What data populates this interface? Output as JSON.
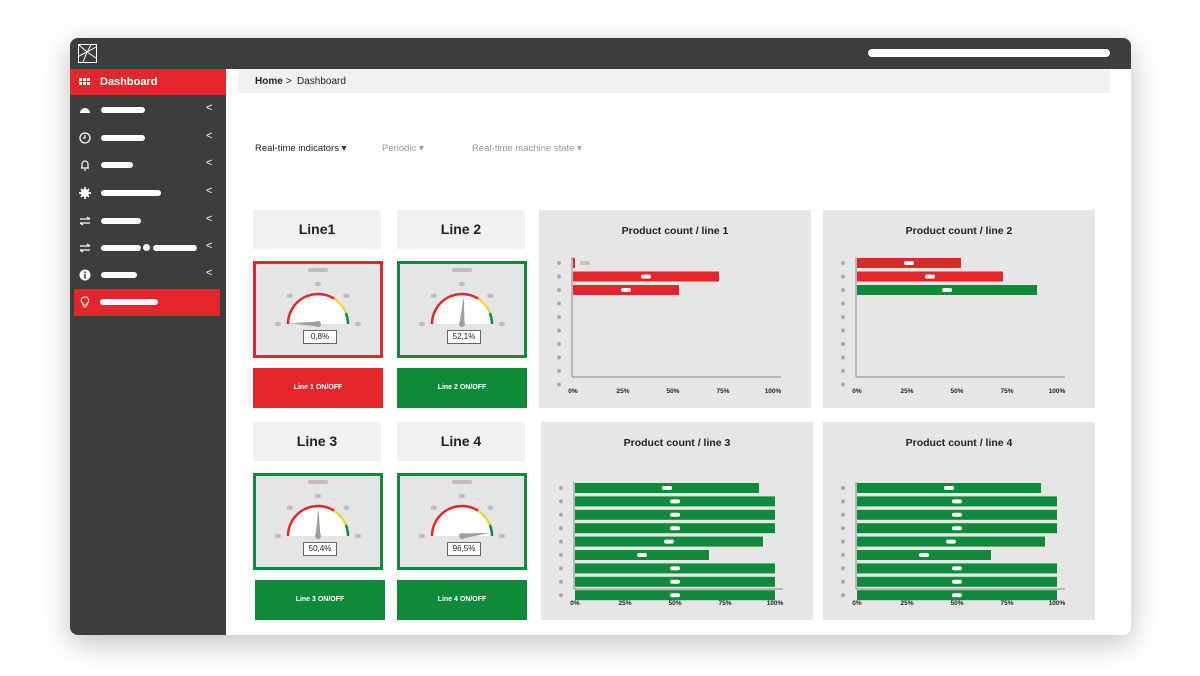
{
  "header": {
    "breadcrumb": {
      "home": "Home",
      "sep": ">",
      "current": "Dashboard"
    }
  },
  "sidebar": {
    "active_label": "Dashboard",
    "items": [
      {
        "icon": "gauge-icon"
      },
      {
        "icon": "clock-icon"
      },
      {
        "icon": "bell-icon"
      },
      {
        "icon": "gear-icon"
      },
      {
        "icon": "transfer-icon"
      },
      {
        "icon": "transfer-icon"
      },
      {
        "icon": "info-icon"
      },
      {
        "icon": "lightbulb-icon"
      }
    ]
  },
  "tabs": [
    {
      "label": "Real-time indicators",
      "active": true
    },
    {
      "label": "Periodic",
      "active": false
    },
    {
      "label": "Real-time machine state",
      "active": false
    }
  ],
  "lines": [
    {
      "title": "Line1",
      "value": "0,8%",
      "gauge_fraction": 0.008,
      "toggle": "Line 1 ON/OFF",
      "status": "off"
    },
    {
      "title": "Line 2",
      "value": "52,1%",
      "gauge_fraction": 0.521,
      "toggle": "Line 2 ON/OFF",
      "status": "on"
    },
    {
      "title": "Line 3",
      "value": "50,4%",
      "gauge_fraction": 0.504,
      "toggle": "Line 3 ON/OFF",
      "status": "on"
    },
    {
      "title": "Line 4",
      "value": "96,5%",
      "gauge_fraction": 0.965,
      "toggle": "Line 4 ON/OFF",
      "status": "on"
    }
  ],
  "colors": {
    "red": "#e3262b",
    "green": "#0f8a3a",
    "dark": "#3d3d3d"
  },
  "chart_data": [
    {
      "type": "bar",
      "title": "Product count / line 1",
      "xticks": [
        "0%",
        "25%",
        "50%",
        "75%",
        "100%"
      ],
      "rows": 10,
      "values": [
        1,
        73,
        53
      ],
      "colors": [
        "red",
        "red",
        "red"
      ]
    },
    {
      "type": "bar",
      "title": "Product count / line 2",
      "xticks": [
        "0%",
        "25%",
        "50%",
        "75%",
        "100%"
      ],
      "rows": 10,
      "values": [
        52,
        73,
        90
      ],
      "colors": [
        "red",
        "red",
        "green"
      ]
    },
    {
      "type": "bar",
      "title": "Product count / line 3",
      "xticks": [
        "0%",
        "25%",
        "50%",
        "75%",
        "100%"
      ],
      "rows": 9,
      "values": [
        92,
        100,
        100,
        100,
        94,
        67,
        100,
        100,
        100
      ],
      "colors": [
        "green",
        "green",
        "green",
        "green",
        "green",
        "green",
        "green",
        "green",
        "green"
      ]
    },
    {
      "type": "bar",
      "title": "Product count / line 4",
      "xticks": [
        "0%",
        "25%",
        "50%",
        "75%",
        "100%"
      ],
      "rows": 9,
      "values": [
        92,
        100,
        100,
        100,
        94,
        67,
        100,
        100,
        100
      ],
      "colors": [
        "green",
        "green",
        "green",
        "green",
        "green",
        "green",
        "green",
        "green",
        "green"
      ]
    }
  ]
}
